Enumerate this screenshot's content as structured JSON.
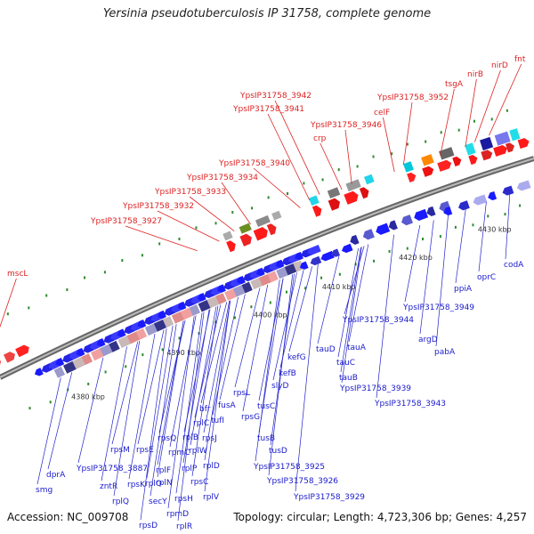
{
  "title": "Yersinia pseudotuberculosis IP 31758, complete genome",
  "accession": "Accession: NC_009708",
  "topology": "Topology: circular; Length: 4,723,306 bp; Genes: 4,257",
  "colors": {
    "forward_label": "#dd2222",
    "reverse_label": "#1a1acc",
    "backbone": "#888888"
  },
  "ruler": [
    "4380 kbp",
    "4390 kbp",
    "4400 kbp",
    "4410 kbp",
    "4420 kbp",
    "4430 kbp"
  ],
  "forward_genes": [
    "mscL",
    "YpsIP31758_3927",
    "YpsIP31758_3932",
    "YpsIP31758_3933",
    "YpsIP31758_3934",
    "YpsIP31758_3940",
    "YpsIP31758_3941",
    "YpsIP31758_3942",
    "crp",
    "YpsIP31758_3946",
    "celF",
    "YpsIP31758_3952",
    "tsgA",
    "nirB",
    "nirD",
    "fnt"
  ],
  "reverse_genes": [
    "dprA",
    "smg",
    "YpsIP31758_3887",
    "zntR",
    "rplQ",
    "rpsD",
    "rpsM",
    "rpsK",
    "rpsE",
    "secY",
    "rpmD",
    "rplO",
    "rplR",
    "rpsQ",
    "rplF",
    "rpmC",
    "rplN",
    "rpsH",
    "rplB",
    "rplP",
    "rplW",
    "rpsC",
    "rplV",
    "rpsJ",
    "rplD",
    "rplC",
    "bfr",
    "tufI",
    "fusA",
    "rpsL",
    "rpsG",
    "tusC",
    "tusB",
    "tusD",
    "slyD",
    "kefB",
    "kefG",
    "YpsIP31758_3925",
    "YpsIP31758_3926",
    "YpsIP31758_3929",
    "tauD",
    "tauC",
    "tauA",
    "tauB",
    "YpsIP31758_3939",
    "YpsIP31758_3943",
    "YpsIP31758_3944",
    "argD",
    "pabA",
    "YpsIP31758_3949",
    "ppiA",
    "oprC",
    "codA"
  ]
}
